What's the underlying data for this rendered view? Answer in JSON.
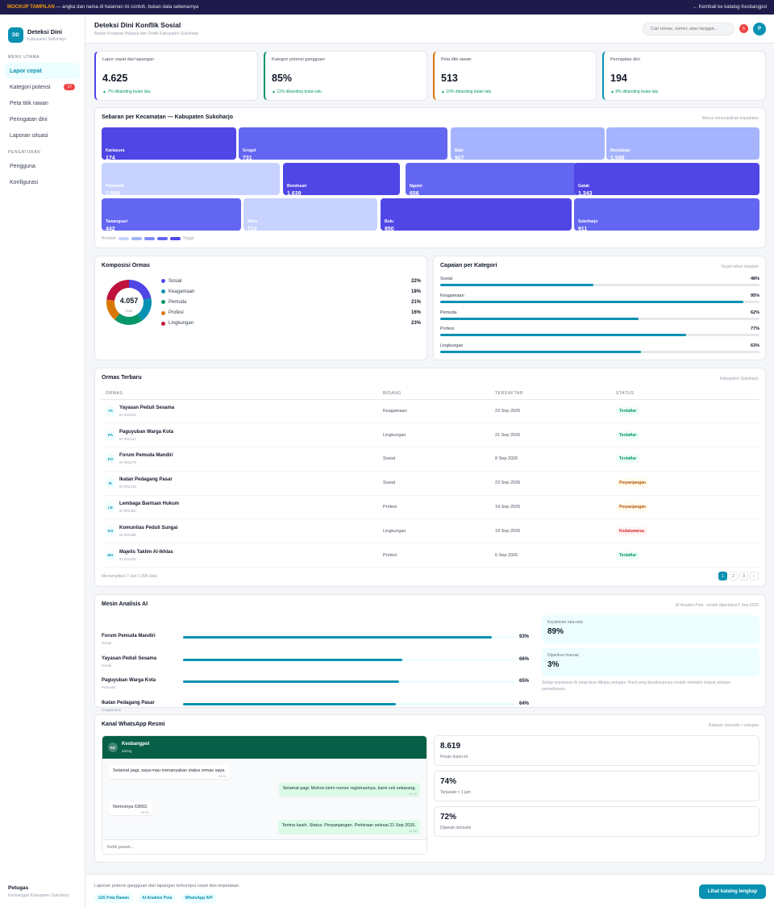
{
  "banner": {
    "tag": "MOCKUP TAMPILAN",
    "text": " — angka dan nama di halaman ini contoh, bukan data sebenarnya",
    "back": "← Kembali ke katalog Kesbangpol"
  },
  "brand": {
    "logo": "DD",
    "name": "Deteksi Dini",
    "sub": "Kabupaten Sukoharjo"
  },
  "sidebar": {
    "section_main": "MENU UTAMA",
    "items": [
      {
        "label": "Lapor cepat"
      },
      {
        "label": "Kategori potensi",
        "badge": "17"
      },
      {
        "label": "Peta titik rawan"
      },
      {
        "label": "Peringatan dini"
      },
      {
        "label": "Laporan situasi"
      }
    ],
    "section_settings": "PENGATURAN",
    "settings": [
      {
        "label": "Pengguna"
      },
      {
        "label": "Konfigurasi"
      }
    ],
    "officer": {
      "name": "Petugas",
      "role": "Kesbangpol Kabupaten Sukoharjo"
    }
  },
  "header": {
    "title": "Deteksi Dini Konflik Sosial",
    "subtitle": "Badan Kesatuan Bangsa dan Politik Kabupaten Sukoharjo",
    "search_placeholder": "Cari ormas, nomor, atau tanggal...",
    "notif_count": "5",
    "avatar": "P"
  },
  "kpis": [
    {
      "label": "Lapor cepat dari lapangan",
      "value": "4.625",
      "delta": "▲ 7% dibanding bulan lalu",
      "color": "#4f46e5"
    },
    {
      "label": "Kategori potensi gangguan",
      "value": "85%",
      "delta": "▲ 11% dibanding bulan lalu",
      "color": "#059669"
    },
    {
      "label": "Peta titik rawan",
      "value": "513",
      "delta": "▲ 10% dibanding bulan lalu",
      "color": "#d97706"
    },
    {
      "label": "Peringatan dini",
      "value": "194",
      "delta": "▲ 9% dibanding bulan lalu",
      "color": "#0891b2"
    }
  ],
  "map": {
    "title": "Sebaran per Kecamatan — Kabupaten Sukoharjo",
    "note": "Warna menunjukkan kepadatan",
    "rows": [
      [
        {
          "name": "Kartasura",
          "value": "174",
          "level": 4
        },
        {
          "name": "Grogol",
          "value": "731",
          "level": 3
        },
        {
          "name": "Baki",
          "value": "907",
          "level": 2
        },
        {
          "name": "Mojolaban",
          "value": "1.588",
          "level": 2
        }
      ],
      [
        {
          "name": "Polokarto",
          "value": "1.699",
          "level": 1
        },
        {
          "name": "Bendosari",
          "value": "1.639",
          "level": 4
        },
        {
          "name": "Nguter",
          "value": "656",
          "level": 3
        },
        {
          "name": "Gatak",
          "value": "1.343",
          "level": 4
        }
      ],
      [
        {
          "name": "Tawangsari",
          "value": "442",
          "level": 3
        },
        {
          "name": "Weru",
          "value": "714",
          "level": 1
        },
        {
          "name": "Bulu",
          "value": "850",
          "level": 4
        },
        {
          "name": "Sukoharjo",
          "value": "911",
          "level": 3
        }
      ]
    ],
    "legend_low": "Rendah",
    "legend_high": "Tinggi",
    "scale_colors": [
      "#c7d2fe",
      "#a5b4fc",
      "#818cf8",
      "#6366f1",
      "#4f46e5"
    ]
  },
  "composition": {
    "title": "Komposisi Ormas",
    "total": "4.057",
    "total_label": "total",
    "items": [
      {
        "label": "Sosial",
        "pct": "22%",
        "value": 22,
        "color": "#4f46e5"
      },
      {
        "label": "Keagamaan",
        "pct": "18%",
        "value": 18,
        "color": "#0891b2"
      },
      {
        "label": "Pemuda",
        "pct": "21%",
        "value": 21,
        "color": "#059669"
      },
      {
        "label": "Profesi",
        "pct": "16%",
        "value": 16,
        "color": "#d97706"
      },
      {
        "label": "Lingkungan",
        "pct": "23%",
        "value": 23,
        "color": "#be123c"
      }
    ]
  },
  "achievement": {
    "title": "Capaian per Kategori",
    "note": "Target tahun berjalan",
    "items": [
      {
        "label": "Sosial",
        "pct": "48%",
        "value": 0.48
      },
      {
        "label": "Keagamaan",
        "pct": "95%",
        "value": 0.95
      },
      {
        "label": "Pemuda",
        "pct": "62%",
        "value": 0.62
      },
      {
        "label": "Profesi",
        "pct": "77%",
        "value": 0.77
      },
      {
        "label": "Lingkungan",
        "pct": "63%",
        "value": 0.63
      }
    ]
  },
  "table": {
    "title": "Ormas Terbaru",
    "note": "Kabupaten Sukoharjo",
    "columns": [
      "ORMAS",
      "BIDANG",
      "TERDAFTAR",
      "STATUS"
    ],
    "rows": [
      {
        "initials": "YA",
        "name": "Yayasan Peduli Sesama",
        "id": "ID 001224",
        "field": "Keagamaan",
        "date": "23 Sep 2026",
        "status": "Terdaftar",
        "status_type": "ok"
      },
      {
        "initials": "PA",
        "name": "Paguyuban Warga Kota",
        "id": "ID 001241",
        "field": "Lingkungan",
        "date": "21 Sep 2026",
        "status": "Terdaftar",
        "status_type": "ok"
      },
      {
        "initials": "FO",
        "name": "Forum Pemuda Mandiri",
        "id": "ID 001278",
        "field": "Sosial",
        "date": "8 Sep 2026",
        "status": "Terdaftar",
        "status_type": "ok"
      },
      {
        "initials": "IK",
        "name": "Ikatan Pedagang Pasar",
        "id": "ID 001315",
        "field": "Sosial",
        "date": "23 Sep 2026",
        "status": "Perpanjangan",
        "status_type": "warn"
      },
      {
        "initials": "LE",
        "name": "Lembaga Bantuan Hukum",
        "id": "ID 001352",
        "field": "Profesi",
        "date": "14 Sep 2026",
        "status": "Perpanjangan",
        "status_type": "warn"
      },
      {
        "initials": "KO",
        "name": "Komunitas Peduli Sungai",
        "id": "ID 001389",
        "field": "Lingkungan",
        "date": "14 Sep 2026",
        "status": "Kedaluwarsa",
        "status_type": "bad"
      },
      {
        "initials": "MA",
        "name": "Majelis Taklim Al-Ikhlas",
        "id": "ID 001426",
        "field": "Profesi",
        "date": "6 Sep 2026",
        "status": "Terdaftar",
        "status_type": "ok"
      }
    ],
    "summary": "Menampilkan 7 dari 1.998 data",
    "pages": [
      "1",
      "2",
      "3",
      "›"
    ]
  },
  "ai": {
    "title": "Mesin Analisis AI",
    "note": "AI Analisis Pola · model diperbarui 5 Sep 2026",
    "items": [
      {
        "name": "Forum Pemuda Mandiri",
        "category": "Sosial",
        "pct": "93%",
        "value": 0.93
      },
      {
        "name": "Yayasan Peduli Sesama",
        "category": "Sosial",
        "pct": "66%",
        "value": 0.66
      },
      {
        "name": "Paguyuban Warga Kota",
        "category": "Pemuda",
        "pct": "65%",
        "value": 0.65
      },
      {
        "name": "Ikatan Pedagang Pasar",
        "category": "Keagamaan",
        "pct": "64%",
        "value": 0.64
      }
    ],
    "confidence_label": "Keyakinan rata-rata",
    "confidence_value": "89%",
    "manual_label": "Diperiksa manual",
    "manual_value": "3%",
    "disclaimer": "Setiap keputusan AI tetap bisa ditinjau petugas. Hasil yang keyakinannya rendah otomatis masuk antrean pemeriksaan."
  },
  "whatsapp": {
    "title": "Kanal WhatsApp Resmi",
    "note": "Balasan otomatis + petugas",
    "contact_initials": "KE",
    "contact": "Kesbangpol",
    "contact_status": "daring",
    "messages": [
      {
        "text": "Selamat pagi, saya mau menanyakan status ormas saya.",
        "time": "10.43",
        "dir": "in"
      },
      {
        "text": "Selamat pagi. Mohon kirim nomor registrasinya, kami cek sekarang.",
        "time": "10.44",
        "dir": "out"
      },
      {
        "text": "Nomornya 63002.",
        "time": "10.44",
        "dir": "in"
      },
      {
        "text": "Terima kasih. Status: Perpanjangan. Perkiraan selesai 21 Sep 2026.",
        "time": "11.46",
        "dir": "out"
      }
    ],
    "input_placeholder": "Ketik pesan...",
    "stats": [
      {
        "value": "8.619",
        "label": "Pesan bulan ini"
      },
      {
        "value": "74%",
        "label": "Terjawab < 1 jam"
      },
      {
        "value": "72%",
        "label": "Dijawab otomatis"
      }
    ]
  },
  "footer": {
    "text": "Laporan potensi gangguan dari lapangan terkumpul cepat dan terpetakan.",
    "chips": [
      "GIS Peta Rawan",
      "AI Analisis Pola",
      "WhatsApp API"
    ],
    "cta": "Lihat katalog lengkap"
  }
}
